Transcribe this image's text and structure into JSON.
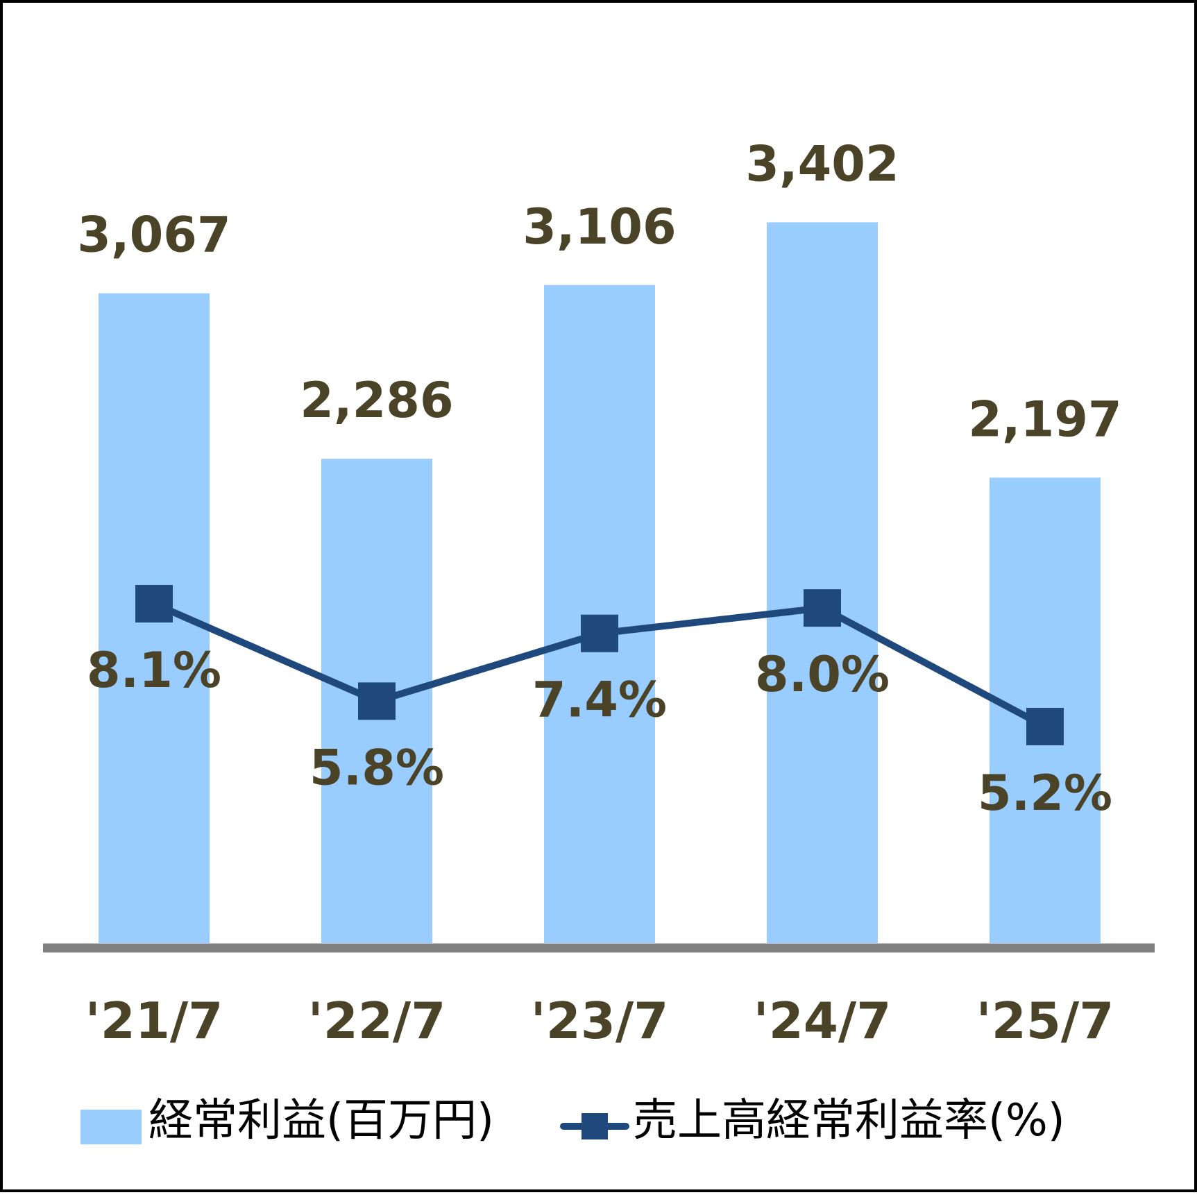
{
  "chart_data": {
    "type": "bar",
    "categories": [
      "'21/7",
      "'22/7",
      "'23/7",
      "'24/7",
      "'25/7"
    ],
    "series": [
      {
        "name": "経常利益(百万円)",
        "type": "bar",
        "values": [
          3067,
          2286,
          3106,
          3402,
          2197
        ],
        "value_labels": [
          "3,067",
          "2,286",
          "3,106",
          "3,402",
          "2,197"
        ],
        "color": "#99CCFF"
      },
      {
        "name": "売上高経常利益率(%)",
        "type": "line",
        "marker": "square",
        "values": [
          8.1,
          5.8,
          7.4,
          8.0,
          5.2
        ],
        "value_labels": [
          "8.1%",
          "5.8%",
          "7.4%",
          "8.0%",
          "5.2%"
        ],
        "color": "#1F497D"
      }
    ],
    "bar_ylim": [
      0,
      3400
    ],
    "line_ylim": [
      0,
      15
    ],
    "label_color": "#4A4328",
    "axis_color": "#808080",
    "grid": false,
    "legend_position": "bottom"
  }
}
